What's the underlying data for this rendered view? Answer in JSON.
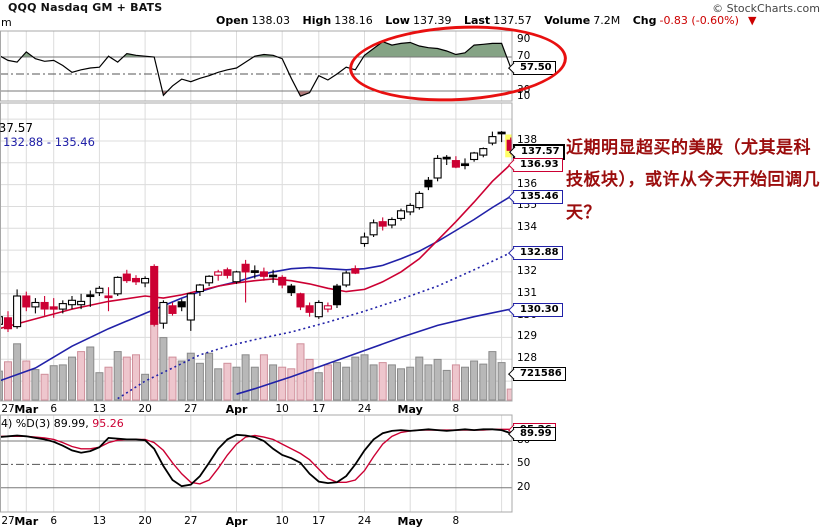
{
  "header": {
    "symbol_line": "QQQ Nasdaq GM + BATS",
    "copyright": "© StockCharts.com",
    "cropped_left_text": "m",
    "quote": {
      "open_label": "Open",
      "open": "138.03",
      "high_label": "High",
      "high": "138.16",
      "low_label": "Low",
      "low": "137.39",
      "last_label": "Last",
      "last": "137.57",
      "volume_label": "Volume",
      "volume": "7.2M",
      "chg_label": "Chg",
      "chg": "-0.83 (-0.60%)",
      "chg_arrow": "▼"
    }
  },
  "legends": {
    "main_price": "137.57",
    "main_ma": "132.88 - 135.46",
    "stoch_prefix": "4) %D(3) 89.99, ",
    "stoch_d_value": "95.26"
  },
  "annotation": {
    "note_text": "近期明显超买的美股（尤其是科技板块），或许从今天开始回调几天？",
    "ellipse_color": "#e81010"
  },
  "chart_data": {
    "type": "candlestick",
    "title": "QQQ Nasdaq GM + BATS daily chart with RSI, volume, moving averages and stochastic",
    "x_labels": [
      {
        "i": 1,
        "t": "27",
        "bold": false
      },
      {
        "i": 3,
        "t": "Mar",
        "bold": true
      },
      {
        "i": 6,
        "t": "6",
        "bold": false
      },
      {
        "i": 11,
        "t": "13",
        "bold": false
      },
      {
        "i": 16,
        "t": "20",
        "bold": false
      },
      {
        "i": 21,
        "t": "27",
        "bold": false
      },
      {
        "i": 26,
        "t": "Apr",
        "bold": true
      },
      {
        "i": 31,
        "t": "10",
        "bold": false
      },
      {
        "i": 35,
        "t": "17",
        "bold": false
      },
      {
        "i": 40,
        "t": "24",
        "bold": false
      },
      {
        "i": 45,
        "t": "May",
        "bold": true
      },
      {
        "i": 50,
        "t": "8",
        "bold": false
      }
    ],
    "extra_gridline_index": 55,
    "rsi": {
      "tick_labels": [
        90,
        70,
        30,
        10
      ],
      "overbought": 70,
      "oversold": 30,
      "midline": 50,
      "last_value_label": "57.50",
      "values": [
        72,
        66,
        64,
        76,
        68,
        65,
        66,
        60,
        52,
        55,
        57,
        58,
        71,
        64,
        74,
        72,
        71,
        70,
        25,
        36,
        44,
        41,
        45,
        48,
        52,
        55,
        57,
        64,
        71,
        73,
        72,
        68,
        45,
        24,
        28,
        48,
        43,
        50,
        58,
        55,
        72,
        80,
        88,
        84,
        86,
        87,
        83,
        81,
        80,
        77,
        73,
        75,
        84,
        85,
        86,
        86,
        57.5
      ]
    },
    "price": {
      "y_ticks": [
        138,
        136,
        135,
        134,
        132,
        131,
        130,
        129,
        128
      ],
      "ylim": [
        126.3,
        139.7
      ],
      "candles": [
        [
          129.6,
          130.2,
          129.2,
          129.95
        ],
        [
          129.9,
          130.2,
          129.25,
          129.4
        ],
        [
          129.5,
          131.2,
          129.4,
          130.9
        ],
        [
          130.9,
          131.1,
          130.2,
          130.4
        ],
        [
          130.4,
          130.8,
          130.1,
          130.6
        ],
        [
          130.6,
          130.9,
          130.0,
          130.3
        ],
        [
          130.4,
          130.8,
          129.9,
          130.3
        ],
        [
          130.3,
          130.7,
          130.1,
          130.55
        ],
        [
          130.5,
          130.9,
          130.3,
          130.7
        ],
        [
          130.5,
          131.0,
          130.3,
          130.65
        ],
        [
          130.95,
          131.15,
          130.4,
          130.95
        ],
        [
          131.05,
          131.35,
          130.9,
          131.25
        ],
        [
          130.9,
          131.3,
          130.2,
          130.85
        ],
        [
          131.0,
          131.8,
          130.9,
          131.75
        ],
        [
          131.9,
          132.1,
          131.5,
          131.6
        ],
        [
          131.7,
          131.85,
          131.4,
          131.55
        ],
        [
          131.5,
          131.8,
          131.3,
          131.7
        ],
        [
          132.25,
          132.35,
          129.5,
          129.6
        ],
        [
          129.65,
          130.7,
          129.4,
          130.6
        ],
        [
          130.45,
          130.6,
          130.0,
          130.1
        ],
        [
          130.63,
          130.75,
          130.2,
          130.4
        ],
        [
          129.8,
          131.05,
          129.3,
          131.0
        ],
        [
          131.1,
          131.45,
          130.9,
          131.4
        ],
        [
          131.5,
          131.85,
          131.35,
          131.8
        ],
        [
          131.85,
          132.1,
          131.6,
          132.0
        ],
        [
          132.1,
          132.2,
          131.7,
          131.85
        ],
        [
          131.55,
          132.05,
          131.45,
          132.0
        ],
        [
          132.35,
          132.55,
          130.6,
          132.0
        ],
        [
          132.05,
          132.3,
          131.7,
          132.05
        ],
        [
          132.0,
          132.2,
          131.6,
          131.8
        ],
        [
          131.85,
          132.1,
          131.5,
          131.85
        ],
        [
          131.75,
          131.85,
          131.25,
          131.4
        ],
        [
          131.35,
          131.45,
          130.9,
          131.05
        ],
        [
          131.0,
          131.05,
          130.25,
          130.4
        ],
        [
          130.45,
          130.6,
          129.95,
          130.15
        ],
        [
          129.95,
          130.7,
          129.85,
          130.6
        ],
        [
          130.45,
          130.6,
          130.15,
          130.3
        ],
        [
          131.35,
          131.45,
          130.35,
          130.5
        ],
        [
          131.4,
          132.05,
          131.3,
          131.95
        ],
        [
          132.15,
          132.3,
          131.9,
          131.95
        ],
        [
          133.3,
          133.8,
          133.15,
          133.6
        ],
        [
          133.7,
          134.4,
          133.6,
          134.25
        ],
        [
          134.3,
          134.5,
          133.9,
          134.1
        ],
        [
          134.15,
          134.5,
          134.0,
          134.4
        ],
        [
          134.45,
          134.9,
          134.35,
          134.8
        ],
        [
          134.75,
          135.15,
          134.6,
          135.05
        ],
        [
          134.95,
          135.7,
          134.85,
          135.6
        ],
        [
          136.2,
          136.35,
          135.75,
          135.9
        ],
        [
          136.3,
          137.35,
          136.15,
          137.2
        ],
        [
          137.25,
          137.35,
          136.9,
          137.25
        ],
        [
          137.1,
          137.3,
          136.75,
          136.8
        ],
        [
          136.95,
          137.2,
          136.7,
          136.95
        ],
        [
          137.15,
          137.5,
          137.05,
          137.45
        ],
        [
          137.35,
          137.7,
          137.25,
          137.65
        ],
        [
          137.9,
          138.43,
          137.8,
          138.2
        ],
        [
          138.38,
          138.45,
          137.95,
          138.4
        ],
        [
          138.03,
          138.16,
          137.39,
          137.57
        ]
      ],
      "candle_types": [
        "w",
        "r",
        "w",
        "r",
        "w",
        "r",
        "r",
        "w",
        "w",
        "w",
        "k",
        "w",
        "r",
        "w",
        "r",
        "r",
        "w",
        "r",
        "w",
        "r",
        "k",
        "w",
        "w",
        "w",
        "rh",
        "r",
        "w",
        "r",
        "k",
        "r",
        "k",
        "r",
        "k",
        "r",
        "r",
        "w",
        "rh",
        "k",
        "w",
        "r",
        "w",
        "w",
        "r",
        "w",
        "w",
        "w",
        "w",
        "k",
        "w",
        "k",
        "r",
        "k",
        "w",
        "w",
        "w",
        "k",
        "r"
      ],
      "highlight_last": true,
      "volume": [
        0.37,
        0.49,
        0.72,
        0.5,
        0.39,
        0.33,
        0.44,
        0.45,
        0.55,
        0.62,
        0.68,
        0.35,
        0.42,
        0.62,
        0.55,
        0.58,
        0.33,
        1.0,
        0.8,
        0.55,
        0.5,
        0.6,
        0.47,
        0.6,
        0.4,
        0.47,
        0.42,
        0.58,
        0.42,
        0.58,
        0.45,
        0.42,
        0.4,
        0.72,
        0.52,
        0.35,
        0.45,
        0.48,
        0.42,
        0.55,
        0.58,
        0.45,
        0.48,
        0.45,
        0.4,
        0.42,
        0.55,
        0.45,
        0.52,
        0.38,
        0.45,
        0.42,
        0.5,
        0.46,
        0.62,
        0.48,
        0.14
      ],
      "ma_red": [
        [
          0,
          129.4
        ],
        [
          4,
          129.85
        ],
        [
          8,
          130.3
        ],
        [
          12,
          130.65
        ],
        [
          16,
          130.9
        ],
        [
          18,
          130.8
        ],
        [
          20,
          130.95
        ],
        [
          22,
          131.15
        ],
        [
          24,
          131.35
        ],
        [
          26,
          131.5
        ],
        [
          28,
          131.6
        ],
        [
          30,
          131.68
        ],
        [
          32,
          131.6
        ],
        [
          34,
          131.45
        ],
        [
          36,
          131.25
        ],
        [
          38,
          131.1
        ],
        [
          40,
          131.2
        ],
        [
          42,
          131.55
        ],
        [
          44,
          132.0
        ],
        [
          46,
          132.6
        ],
        [
          48,
          133.45
        ],
        [
          50,
          134.3
        ],
        [
          52,
          135.2
        ],
        [
          54,
          136.15
        ],
        [
          56,
          136.93
        ]
      ],
      "ma_blue": [
        [
          0,
          127.0
        ],
        [
          4,
          127.6
        ],
        [
          8,
          128.6
        ],
        [
          12,
          129.4
        ],
        [
          16,
          130.1
        ],
        [
          18,
          130.45
        ],
        [
          20,
          130.8
        ],
        [
          22,
          131.1
        ],
        [
          24,
          131.35
        ],
        [
          26,
          131.55
        ],
        [
          28,
          131.8
        ],
        [
          30,
          132.0
        ],
        [
          32,
          132.15
        ],
        [
          34,
          132.2
        ],
        [
          36,
          132.15
        ],
        [
          38,
          132.1
        ],
        [
          40,
          132.15
        ],
        [
          42,
          132.3
        ],
        [
          44,
          132.6
        ],
        [
          46,
          132.95
        ],
        [
          48,
          133.4
        ],
        [
          50,
          133.9
        ],
        [
          52,
          134.4
        ],
        [
          54,
          134.95
        ],
        [
          56,
          135.46
        ]
      ],
      "ma_blue_dotted": [
        [
          13,
          126.2
        ],
        [
          16,
          127.0
        ],
        [
          19,
          127.6
        ],
        [
          22,
          128.2
        ],
        [
          25,
          128.6
        ],
        [
          28,
          128.9
        ],
        [
          32,
          129.25
        ],
        [
          36,
          129.7
        ],
        [
          40,
          130.2
        ],
        [
          44,
          130.75
        ],
        [
          48,
          131.35
        ],
        [
          52,
          132.1
        ],
        [
          56,
          132.88
        ]
      ],
      "ma_blue_lower": [
        [
          26,
          126.4
        ],
        [
          28,
          126.65
        ],
        [
          32,
          127.2
        ],
        [
          36,
          127.8
        ],
        [
          40,
          128.4
        ],
        [
          44,
          129.0
        ],
        [
          48,
          129.55
        ],
        [
          52,
          129.95
        ],
        [
          56,
          130.3
        ]
      ],
      "callouts": [
        {
          "text": "137.57",
          "cls": "c-k c-strong",
          "price": 137.57
        },
        {
          "text": "136.93",
          "cls": "c-r",
          "price": 136.93
        },
        {
          "text": "135.46",
          "cls": "c-b",
          "price": 135.46
        },
        {
          "text": "132.88",
          "cls": "c-b",
          "price": 132.88
        },
        {
          "text": "130.30",
          "cls": "c-b",
          "price": 130.3
        },
        {
          "text": "721586",
          "cls": "c-k",
          "fixed_y": 373
        }
      ]
    },
    "stoch": {
      "tick_labels": [
        80,
        50,
        20
      ],
      "midline": 50,
      "k_values": [
        85,
        86,
        87,
        86,
        84,
        82,
        79,
        74,
        68,
        65,
        67,
        72,
        84,
        83,
        82,
        82,
        81,
        70,
        48,
        30,
        22,
        24,
        35,
        52,
        70,
        82,
        88,
        87,
        85,
        80,
        70,
        62,
        58,
        52,
        38,
        28,
        26,
        27,
        35,
        50,
        68,
        82,
        90,
        93,
        94,
        93,
        94,
        95,
        94,
        93,
        94,
        95,
        94,
        95,
        95,
        94,
        90
      ],
      "d_values": [
        86,
        86,
        86,
        86,
        85,
        84,
        82,
        78,
        73,
        70,
        70,
        72,
        78,
        81,
        82,
        82,
        82,
        78,
        68,
        52,
        38,
        27,
        25,
        30,
        45,
        62,
        76,
        85,
        87,
        85,
        82,
        76,
        70,
        64,
        56,
        44,
        32,
        27,
        27,
        30,
        42,
        60,
        76,
        86,
        91,
        93,
        94,
        94,
        94,
        94,
        94,
        94,
        94,
        94,
        95,
        95,
        95
      ],
      "callouts": [
        {
          "text": "95.26",
          "cls": "c-r",
          "value": 95.26
        },
        {
          "text": "89.99",
          "cls": "c-k",
          "value": 89.99
        }
      ]
    },
    "colors": {
      "down_red": "#cc0033",
      "up_fill": "#ffffff",
      "black": "#000000",
      "vol_up_fill": "#b8b8b8",
      "vol_up_stroke": "#8a8a8a",
      "vol_down_fill": "#eec6cd",
      "vol_down_stroke": "#cf8f9b",
      "ma_blue": "#2121a8",
      "grid": "#dcdcdc",
      "panel_border": "#a8a8a8",
      "level_line": "#787878",
      "rsi_fill_high": "#85a385",
      "rsi_fill_low": "#b27c7c",
      "highlight": "#ffff66"
    }
  }
}
